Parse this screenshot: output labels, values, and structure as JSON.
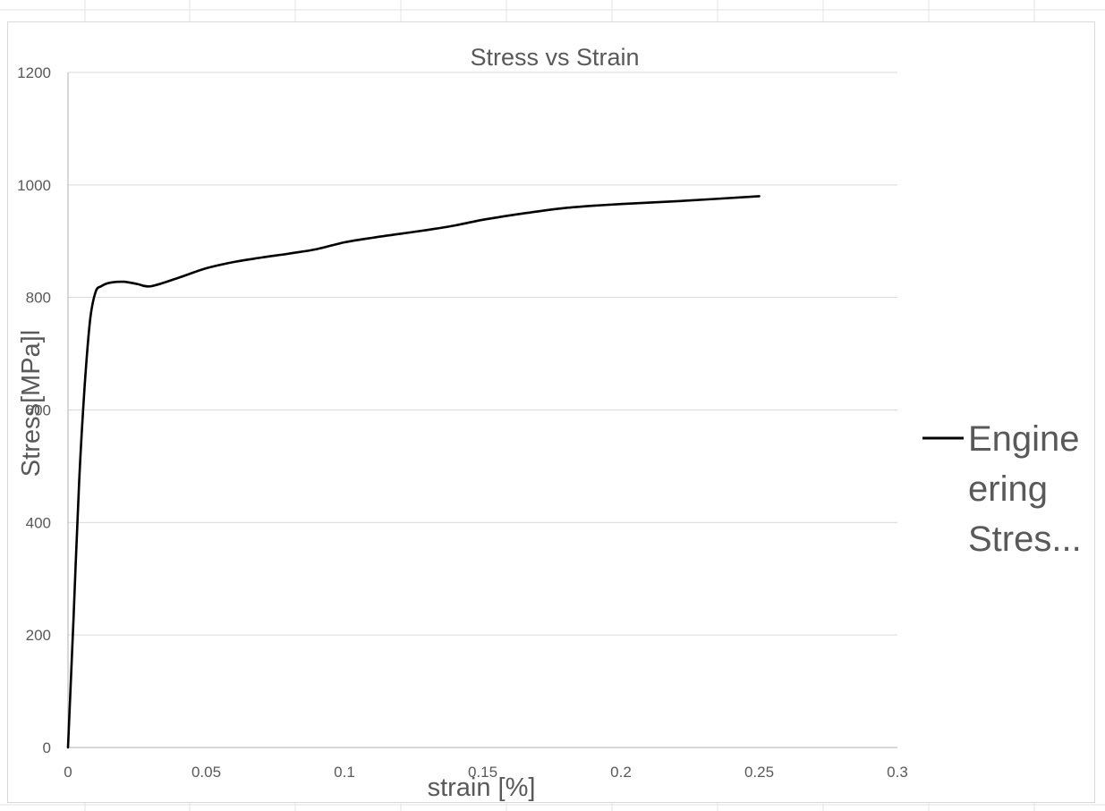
{
  "chart_data": {
    "type": "line",
    "title": "Stress vs Strain",
    "xlabel": "strain [%]",
    "ylabel": "Stress[MPa]l",
    "xlim": [
      0,
      0.3
    ],
    "ylim": [
      0,
      1200
    ],
    "x_ticks": [
      "0",
      "0.05",
      "0.1",
      "0.15",
      "0.2",
      "0.25",
      "0.3"
    ],
    "y_ticks": [
      "0",
      "200",
      "400",
      "600",
      "800",
      "1000",
      "1200"
    ],
    "grid": "horizontal",
    "legend_position": "right",
    "legend_lines": [
      "Engine",
      "ering",
      "Stres..."
    ],
    "series": [
      {
        "name": "Engineering Stres...",
        "color": "#000000",
        "x": [
          0,
          0.002,
          0.004,
          0.006,
          0.008,
          0.01,
          0.012,
          0.015,
          0.02,
          0.025,
          0.03,
          0.04,
          0.05,
          0.06,
          0.07,
          0.08,
          0.09,
          0.1,
          0.11,
          0.12,
          0.13,
          0.14,
          0.15,
          0.16,
          0.17,
          0.18,
          0.19,
          0.2,
          0.22,
          0.25
        ],
        "values": [
          0,
          230,
          470,
          640,
          760,
          810,
          820,
          826,
          828,
          824,
          820,
          835,
          852,
          863,
          871,
          878,
          886,
          898,
          906,
          913,
          920,
          928,
          938,
          946,
          953,
          959,
          963,
          966,
          971,
          980
        ]
      }
    ]
  }
}
